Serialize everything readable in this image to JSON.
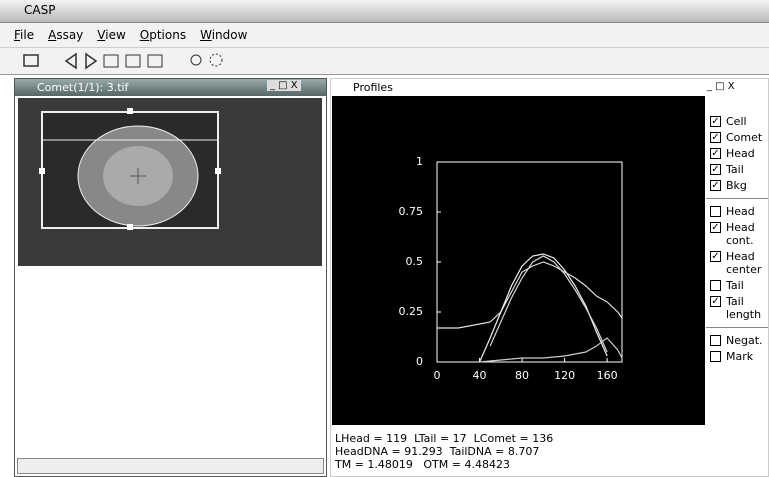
{
  "app_title": "CASP",
  "menu": [
    "File",
    "Assay",
    "View",
    "Options",
    "Window"
  ],
  "left_window": {
    "title": "Comet(1/1): 3.tif"
  },
  "right_window": {
    "title": "Profiles"
  },
  "options": [
    {
      "label": "Cell",
      "checked": true
    },
    {
      "label": "Comet",
      "checked": true
    },
    {
      "label": "Head",
      "checked": true
    },
    {
      "label": "Tail",
      "checked": true
    },
    {
      "label": "Bkg",
      "checked": true
    }
  ],
  "measures": [
    {
      "label": "Head",
      "checked": false
    },
    {
      "label": "Head cont.",
      "checked": true
    },
    {
      "label": "Head center",
      "checked": true
    },
    {
      "label": "Tail",
      "checked": false
    },
    {
      "label": "Tail length",
      "checked": true
    }
  ],
  "extras": [
    {
      "label": "Negat.",
      "checked": false
    },
    {
      "label": "Mark",
      "checked": false
    }
  ],
  "status": [
    "LHead = 119  LTail = 17  LComet = 136",
    "HeadDNA = 91.293  TailDNA = 8.707",
    "TM = 1.48019   OTM = 4.48423"
  ],
  "chart_data": {
    "type": "line",
    "x": [
      0,
      10,
      20,
      30,
      40,
      50,
      60,
      70,
      80,
      90,
      100,
      110,
      120,
      130,
      140,
      150,
      160,
      170,
      174
    ],
    "series": [
      {
        "color": "#e0e0e0",
        "values": [
          0.17,
          0.17,
          0.17,
          0.18,
          0.19,
          0.2,
          0.25,
          0.35,
          0.45,
          0.48,
          0.5,
          0.48,
          0.45,
          0.42,
          0.38,
          0.33,
          0.3,
          0.25,
          0.22
        ]
      },
      {
        "color": "#f0f0f0",
        "values": [
          null,
          null,
          null,
          null,
          0,
          0.12,
          0.25,
          0.38,
          0.48,
          0.53,
          0.54,
          0.52,
          0.46,
          0.38,
          0.28,
          0.15,
          0.03,
          null,
          null
        ]
      },
      {
        "color": "#d8d8d8",
        "values": [
          null,
          null,
          null,
          null,
          null,
          0.08,
          0.2,
          0.32,
          0.42,
          0.5,
          0.53,
          0.5,
          0.44,
          0.36,
          0.27,
          0.17,
          0.05,
          null,
          null
        ]
      },
      {
        "color": "#cccccc",
        "values": [
          null,
          null,
          null,
          null,
          0,
          0.005,
          0.01,
          0.015,
          0.02,
          0.02,
          0.02,
          0.025,
          0.03,
          0.04,
          0.05,
          0.08,
          0.12,
          0.06,
          0.02
        ]
      }
    ],
    "xlim": [
      0,
      174
    ],
    "ylim": [
      0,
      1
    ],
    "xticks": [
      0,
      40,
      80,
      120,
      160
    ],
    "yticks": [
      0,
      0.25,
      0.5,
      0.75,
      1
    ],
    "grid": false
  }
}
